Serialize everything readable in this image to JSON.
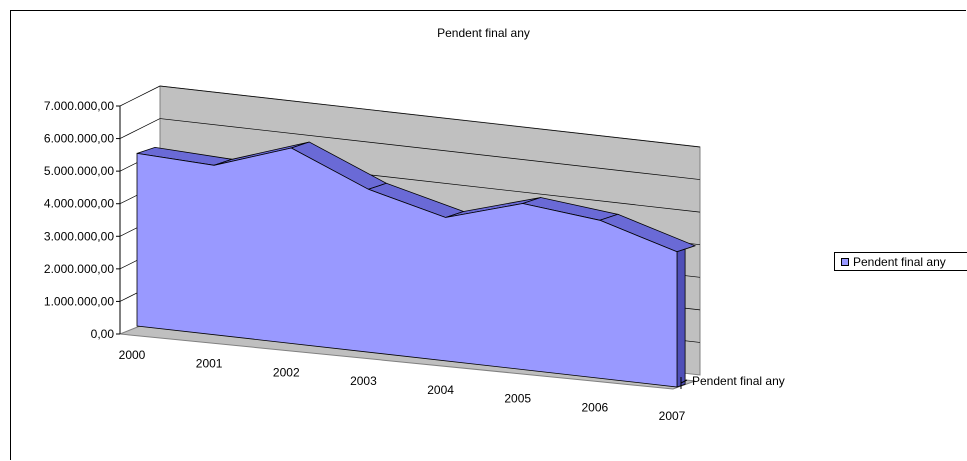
{
  "chart_data": {
    "type": "area",
    "title": "Pendent final any",
    "categories": [
      "2000",
      "2001",
      "2002",
      "2003",
      "2004",
      "2005",
      "2006",
      "2007"
    ],
    "series": [
      {
        "name": "Pendent final any",
        "values": [
          5300000,
          5200000,
          6000000,
          5000000,
          4400000,
          5100000,
          4850000,
          4150000
        ]
      }
    ],
    "y_tick_labels": [
      "0,00",
      "1.000.000,00",
      "2.000.000,00",
      "3.000.000,00",
      "4.000.000,00",
      "5.000.000,00",
      "6.000.000,00",
      "7.000.000,00"
    ],
    "depth_axis_label": "Pendent final any",
    "ylim": [
      0,
      7000000
    ],
    "grid": true,
    "legend_position": "right",
    "colors": {
      "fill": "#9999ff",
      "top": "#6a6ad6",
      "side": "#4f4fb8",
      "floor": "#bfbfbf",
      "wall": "#c0c0c0",
      "gridline": "#000000"
    }
  }
}
